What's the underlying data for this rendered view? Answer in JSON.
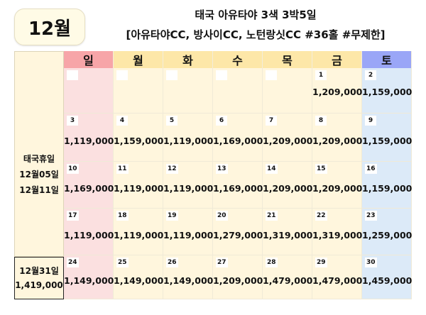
{
  "month_badge": "12월",
  "title_line1": "태국 아유타야 3색 3박5일",
  "title_line2": "[아유타야CC, 방사이CC, 노턴랑싯CC #36홀 #무제한]",
  "sidebar": {
    "holiday_lines": [
      "태국휴일",
      "12월05일",
      "12월11일"
    ],
    "special_date": "12월31일",
    "special_price": "1,419,000"
  },
  "weekdays": [
    "일",
    "월",
    "화",
    "수",
    "목",
    "금",
    "토"
  ],
  "colors": {
    "sunday_header": "#f7a5a8",
    "sunday_cell": "#fbe0e0",
    "weekday_header": "#fde7a8",
    "weekday_cell": "#fff6dd",
    "saturday_header": "#9aa6f7",
    "saturday_cell": "#dceaf8"
  },
  "weeks": [
    [
      {
        "day": "",
        "price": ""
      },
      {
        "day": "",
        "price": ""
      },
      {
        "day": "",
        "price": ""
      },
      {
        "day": "",
        "price": ""
      },
      {
        "day": "",
        "price": ""
      },
      {
        "day": "1",
        "price": "1,209,000"
      },
      {
        "day": "2",
        "price": "1,159,000"
      }
    ],
    [
      {
        "day": "3",
        "price": "1,119,000"
      },
      {
        "day": "4",
        "price": "1,159,000"
      },
      {
        "day": "5",
        "price": "1,119,000"
      },
      {
        "day": "6",
        "price": "1,169,000"
      },
      {
        "day": "7",
        "price": "1,209,000"
      },
      {
        "day": "8",
        "price": "1,209,000"
      },
      {
        "day": "9",
        "price": "1,159,000"
      }
    ],
    [
      {
        "day": "10",
        "price": "1,169,000"
      },
      {
        "day": "11",
        "price": "1,119,000"
      },
      {
        "day": "12",
        "price": "1,119,000"
      },
      {
        "day": "13",
        "price": "1,169,000"
      },
      {
        "day": "14",
        "price": "1,209,000"
      },
      {
        "day": "15",
        "price": "1,209,000"
      },
      {
        "day": "16",
        "price": "1,159,000"
      }
    ],
    [
      {
        "day": "17",
        "price": "1,119,000"
      },
      {
        "day": "18",
        "price": "1,119,000"
      },
      {
        "day": "19",
        "price": "1,119,000"
      },
      {
        "day": "20",
        "price": "1,279,000"
      },
      {
        "day": "21",
        "price": "1,319,000"
      },
      {
        "day": "22",
        "price": "1,319,000"
      },
      {
        "day": "23",
        "price": "1,259,000"
      }
    ],
    [
      {
        "day": "24",
        "price": "1,149,000"
      },
      {
        "day": "25",
        "price": "1,149,000"
      },
      {
        "day": "26",
        "price": "1,149,000"
      },
      {
        "day": "27",
        "price": "1,209,000"
      },
      {
        "day": "28",
        "price": "1,479,000"
      },
      {
        "day": "29",
        "price": "1,479,000"
      },
      {
        "day": "30",
        "price": "1,459,000"
      }
    ]
  ]
}
